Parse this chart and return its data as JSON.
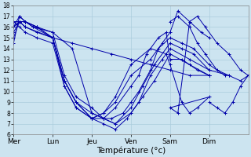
{
  "bg_color": "#cce4f0",
  "grid_color": "#aaccdd",
  "line_color": "#0000aa",
  "marker": "+",
  "xlabel": "Température (°c)",
  "ylim": [
    6,
    18
  ],
  "xlim": [
    0,
    6
  ],
  "yticks": [
    6,
    7,
    8,
    9,
    10,
    11,
    12,
    13,
    14,
    15,
    16,
    17,
    18
  ],
  "day_labels": [
    "Mer",
    "Lun",
    "Jeu",
    "Ven",
    "Sam",
    "Dim"
  ],
  "day_positions": [
    0,
    1,
    2,
    3,
    4,
    5
  ],
  "series": [
    {
      "x": [
        0.0,
        0.15,
        0.3,
        1.0,
        1.5,
        2.0,
        2.5,
        3.0,
        3.5,
        4.0,
        4.5,
        5.0
      ],
      "y": [
        15.0,
        16.5,
        16.0,
        15.0,
        14.5,
        14.0,
        13.5,
        13.0,
        12.5,
        12.0,
        11.5,
        11.5
      ]
    },
    {
      "x": [
        0.0,
        0.15,
        0.3,
        0.5,
        1.0,
        1.5,
        2.0,
        2.3,
        2.6,
        3.0,
        3.3,
        3.6,
        4.0,
        4.5,
        5.0
      ],
      "y": [
        14.5,
        17.0,
        16.5,
        16.0,
        15.5,
        14.0,
        8.0,
        7.5,
        7.0,
        8.0,
        9.5,
        11.0,
        13.5,
        12.5,
        11.5
      ]
    },
    {
      "x": [
        0.0,
        0.15,
        0.3,
        0.5,
        1.0,
        1.3,
        1.6,
        2.0,
        2.3,
        2.6,
        2.9,
        3.2,
        3.5,
        3.8,
        4.0,
        4.5,
        5.0
      ],
      "y": [
        15.5,
        16.5,
        16.5,
        16.0,
        15.0,
        11.0,
        9.0,
        7.5,
        7.0,
        6.5,
        7.5,
        9.0,
        11.5,
        13.0,
        14.0,
        13.0,
        12.0
      ]
    },
    {
      "x": [
        0.0,
        0.15,
        0.3,
        0.6,
        1.0,
        1.3,
        1.6,
        2.0,
        2.3,
        2.6,
        3.0,
        3.3,
        3.6,
        4.0,
        4.3,
        4.6,
        5.0,
        5.5
      ],
      "y": [
        16.0,
        17.0,
        16.5,
        16.0,
        15.5,
        11.5,
        9.5,
        8.5,
        7.5,
        7.0,
        8.5,
        10.5,
        12.5,
        14.5,
        14.0,
        13.5,
        12.0,
        11.5
      ]
    },
    {
      "x": [
        0.0,
        0.15,
        0.3,
        0.6,
        1.0,
        1.3,
        1.6,
        2.0,
        2.3,
        2.5,
        2.8,
        3.0,
        3.2,
        3.5,
        3.7,
        4.0,
        4.3,
        4.6,
        5.0,
        5.4
      ],
      "y": [
        16.5,
        16.5,
        16.0,
        15.5,
        15.0,
        11.0,
        9.0,
        8.0,
        7.5,
        7.5,
        8.0,
        9.0,
        10.0,
        12.0,
        14.0,
        15.0,
        14.5,
        14.0,
        12.5,
        11.5
      ]
    },
    {
      "x": [
        0.0,
        0.15,
        0.3,
        0.6,
        1.0,
        1.3,
        1.6,
        2.0,
        2.3,
        2.6,
        3.0,
        3.2,
        3.4,
        3.7,
        3.9,
        4.0,
        4.3,
        4.7,
        5.0
      ],
      "y": [
        16.5,
        16.0,
        15.5,
        15.0,
        14.5,
        10.5,
        8.5,
        7.5,
        7.5,
        8.5,
        10.5,
        11.5,
        13.5,
        15.0,
        15.5,
        13.0,
        13.0,
        12.0,
        11.5
      ]
    },
    {
      "x": [
        0.0,
        0.15,
        0.3,
        0.6,
        1.0,
        1.3,
        1.6,
        2.0,
        2.3,
        2.6,
        3.0,
        3.5,
        3.8,
        4.0,
        4.2,
        4.5,
        4.8,
        5.0
      ],
      "y": [
        16.0,
        16.5,
        16.5,
        16.0,
        15.0,
        11.0,
        9.0,
        7.5,
        8.0,
        9.0,
        11.5,
        13.0,
        14.5,
        15.5,
        17.5,
        16.5,
        15.5,
        15.0
      ]
    },
    {
      "x": [
        0.0,
        0.15,
        0.3,
        0.6,
        1.0,
        1.3,
        1.6,
        2.0,
        2.3,
        2.6,
        3.0,
        3.5,
        3.9,
        4.0,
        4.3,
        4.5,
        4.7,
        5.0,
        4.0,
        4.2,
        4.5,
        4.7,
        4.9,
        5.2,
        5.5,
        5.8,
        6.0
      ],
      "y": [
        16.0,
        16.5,
        16.5,
        16.0,
        15.0,
        10.5,
        8.5,
        7.5,
        8.0,
        9.5,
        12.5,
        14.0,
        13.5,
        12.5,
        9.0,
        8.0,
        8.5,
        9.5,
        8.5,
        8.0,
        16.5,
        17.0,
        16.0,
        14.5,
        13.5,
        12.0,
        11.5
      ]
    },
    {
      "x": [
        4.0,
        4.2,
        4.5,
        4.7,
        4.9,
        5.2,
        5.5,
        5.8,
        6.0
      ],
      "y": [
        16.5,
        17.0,
        16.0,
        14.5,
        13.5,
        12.0,
        11.5,
        11.0,
        11.5
      ]
    },
    {
      "x": [
        5.0,
        5.2,
        5.4,
        5.6,
        5.8,
        6.0
      ],
      "y": [
        9.0,
        8.5,
        8.0,
        9.0,
        10.5,
        11.5
      ]
    }
  ]
}
